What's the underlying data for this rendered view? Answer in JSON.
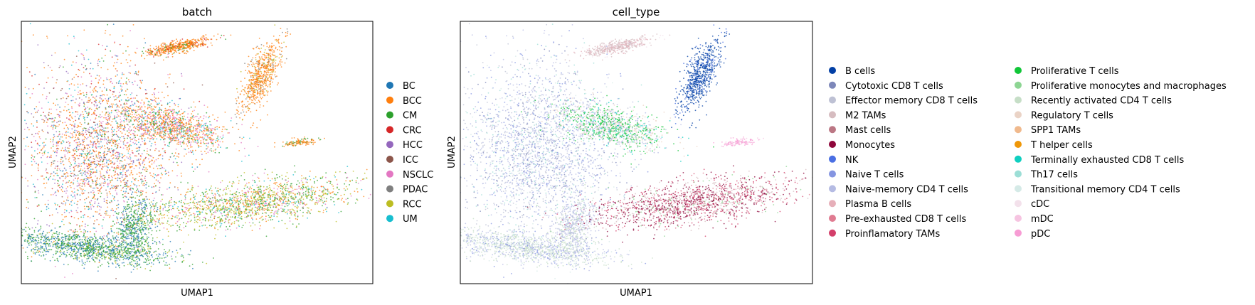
{
  "chart_data": [
    {
      "type": "scatter",
      "title": "batch",
      "xlabel": "UMAP1",
      "ylabel": "UMAP2",
      "grid": false,
      "xticks": [],
      "yticks": [],
      "legend_position": "right",
      "legend": [
        {
          "label": "BC",
          "color": "#1f77b4"
        },
        {
          "label": "BCC",
          "color": "#ff7f0e"
        },
        {
          "label": "CM",
          "color": "#2ca02c"
        },
        {
          "label": "CRC",
          "color": "#d62728"
        },
        {
          "label": "HCC",
          "color": "#9467bd"
        },
        {
          "label": "ICC",
          "color": "#8c564b"
        },
        {
          "label": "NSCLC",
          "color": "#e377c2"
        },
        {
          "label": "PDAC",
          "color": "#7f7f7f"
        },
        {
          "label": "RCC",
          "color": "#bcbd22"
        },
        {
          "label": "UM",
          "color": "#17becf"
        }
      ]
    },
    {
      "type": "scatter",
      "title": "cell_type",
      "xlabel": "UMAP1",
      "ylabel": "UMAP2",
      "grid": false,
      "xticks": [],
      "yticks": [],
      "legend_position": "right",
      "legend": [
        {
          "label": "B cells",
          "color": "#023fa5"
        },
        {
          "label": "Cytotoxic CD8 T cells",
          "color": "#7d87b9"
        },
        {
          "label": "Effector memory CD8 T cells",
          "color": "#bec1d4"
        },
        {
          "label": "M2 TAMs",
          "color": "#d6bcc0"
        },
        {
          "label": "Mast cells",
          "color": "#bb7784"
        },
        {
          "label": "Monocytes",
          "color": "#8e063b"
        },
        {
          "label": "NK",
          "color": "#4a6fe3"
        },
        {
          "label": "Naive T cells",
          "color": "#8595e1"
        },
        {
          "label": "Naive-memory CD4 T cells",
          "color": "#b5bbe3"
        },
        {
          "label": "Plasma B cells",
          "color": "#e6afb9"
        },
        {
          "label": "Pre-exhausted CD8 T cells",
          "color": "#e07b91"
        },
        {
          "label": "Proinflamatory TAMs",
          "color": "#d33f6a"
        },
        {
          "label": "Proliferative T cells",
          "color": "#11c638"
        },
        {
          "label": "Proliferative monocytes and macrophages",
          "color": "#8dd593"
        },
        {
          "label": "Recently activated CD4 T cells",
          "color": "#c6dec7"
        },
        {
          "label": "Regulatory T cells",
          "color": "#ead3c6"
        },
        {
          "label": "SPP1 TAMs",
          "color": "#f0b98d"
        },
        {
          "label": "T helper cells",
          "color": "#ef9708"
        },
        {
          "label": "Terminally exhausted CD8 T cells",
          "color": "#0fcfc0"
        },
        {
          "label": "Th17 cells",
          "color": "#9cded6"
        },
        {
          "label": "Transitional memory CD4 T cells",
          "color": "#d5eae7"
        },
        {
          "label": "cDC",
          "color": "#f3e1eb"
        },
        {
          "label": "mDC",
          "color": "#f6c4e1"
        },
        {
          "label": "pDC",
          "color": "#f79cd4"
        }
      ]
    }
  ]
}
